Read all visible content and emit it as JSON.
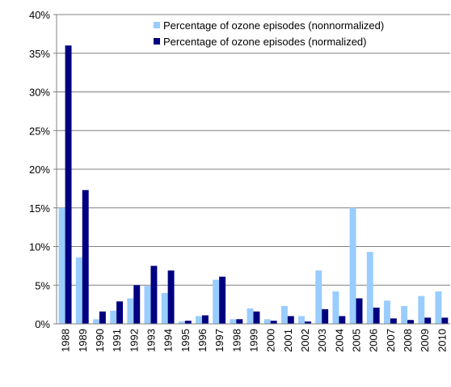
{
  "chart_data": {
    "type": "bar",
    "categories": [
      "1988",
      "1989",
      "1990",
      "1991",
      "1992",
      "1993",
      "1994",
      "1995",
      "1996",
      "1997",
      "1998",
      "1999",
      "2000",
      "2001",
      "2002",
      "2003",
      "2004",
      "2005",
      "2006",
      "2007",
      "2008",
      "2009",
      "2010"
    ],
    "series": [
      {
        "name": "Percentage of ozone episodes (nonnormalized)",
        "color": "#99ccff",
        "values": [
          15,
          8.6,
          0.6,
          1.7,
          3.3,
          4.9,
          4.0,
          0.3,
          1.0,
          5.7,
          0.6,
          2.0,
          0.6,
          2.3,
          1.0,
          6.9,
          4.2,
          15.0,
          9.3,
          3.0,
          2.3,
          3.6,
          4.2
        ]
      },
      {
        "name": "Percentage of ozone episodes (normalized)",
        "color": "#000080",
        "values": [
          36,
          17.3,
          1.6,
          2.9,
          5.0,
          7.5,
          6.9,
          0.4,
          1.1,
          6.1,
          0.6,
          1.6,
          0.4,
          1.0,
          0.3,
          1.9,
          1.0,
          3.3,
          2.1,
          0.7,
          0.5,
          0.8,
          0.8
        ]
      }
    ],
    "ylim": [
      0,
      40
    ],
    "yticks": [
      {
        "value": 0,
        "label": "0%"
      },
      {
        "value": 5,
        "label": "5%"
      },
      {
        "value": 10,
        "label": "10%"
      },
      {
        "value": 15,
        "label": "15%"
      },
      {
        "value": 20,
        "label": "20%"
      },
      {
        "value": 25,
        "label": "25%"
      },
      {
        "value": 30,
        "label": "30%"
      },
      {
        "value": 35,
        "label": "35%"
      },
      {
        "value": 40,
        "label": "40%"
      }
    ],
    "grid": true,
    "legend": "upper right"
  }
}
